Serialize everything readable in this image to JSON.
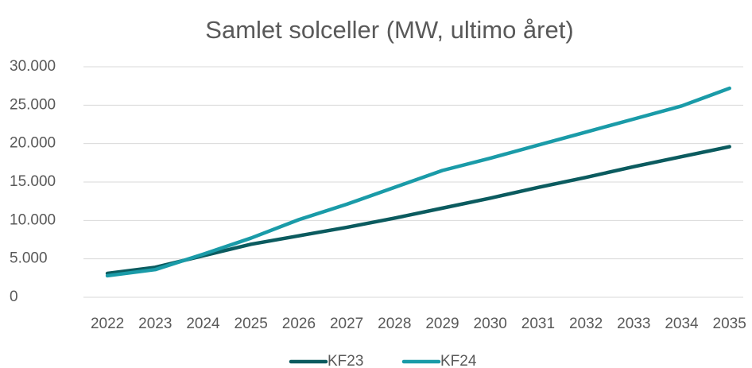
{
  "chart_data": {
    "type": "line",
    "title": "Samlet solceller (MW, ultimo året)",
    "categories": [
      "2022",
      "2023",
      "2024",
      "2025",
      "2026",
      "2027",
      "2028",
      "2029",
      "2030",
      "2031",
      "2032",
      "2033",
      "2034",
      "2035"
    ],
    "series": [
      {
        "name": "KF23",
        "color": "#0b5b5f",
        "values": [
          3100,
          3900,
          5400,
          6900,
          8000,
          9100,
          10300,
          11600,
          12900,
          14300,
          15600,
          17000,
          18300,
          19600
        ]
      },
      {
        "name": "KF24",
        "color": "#1a9ba8",
        "values": [
          2800,
          3600,
          5600,
          7700,
          10100,
          12100,
          14300,
          16500,
          18100,
          19800,
          21500,
          23200,
          24900,
          27200
        ]
      }
    ],
    "ylim": [
      0,
      30000
    ],
    "yticks": [
      0,
      {
        "value": 5000,
        "label": "5.000"
      },
      {
        "value": 10000,
        "label": "10.000"
      },
      {
        "value": 15000,
        "label": "15.000"
      },
      {
        "value": 20000,
        "label": "20.000"
      },
      {
        "value": 25000,
        "label": "25.000"
      },
      {
        "value": 30000,
        "label": "30.000"
      }
    ],
    "grid": true,
    "legend": "bottom"
  }
}
